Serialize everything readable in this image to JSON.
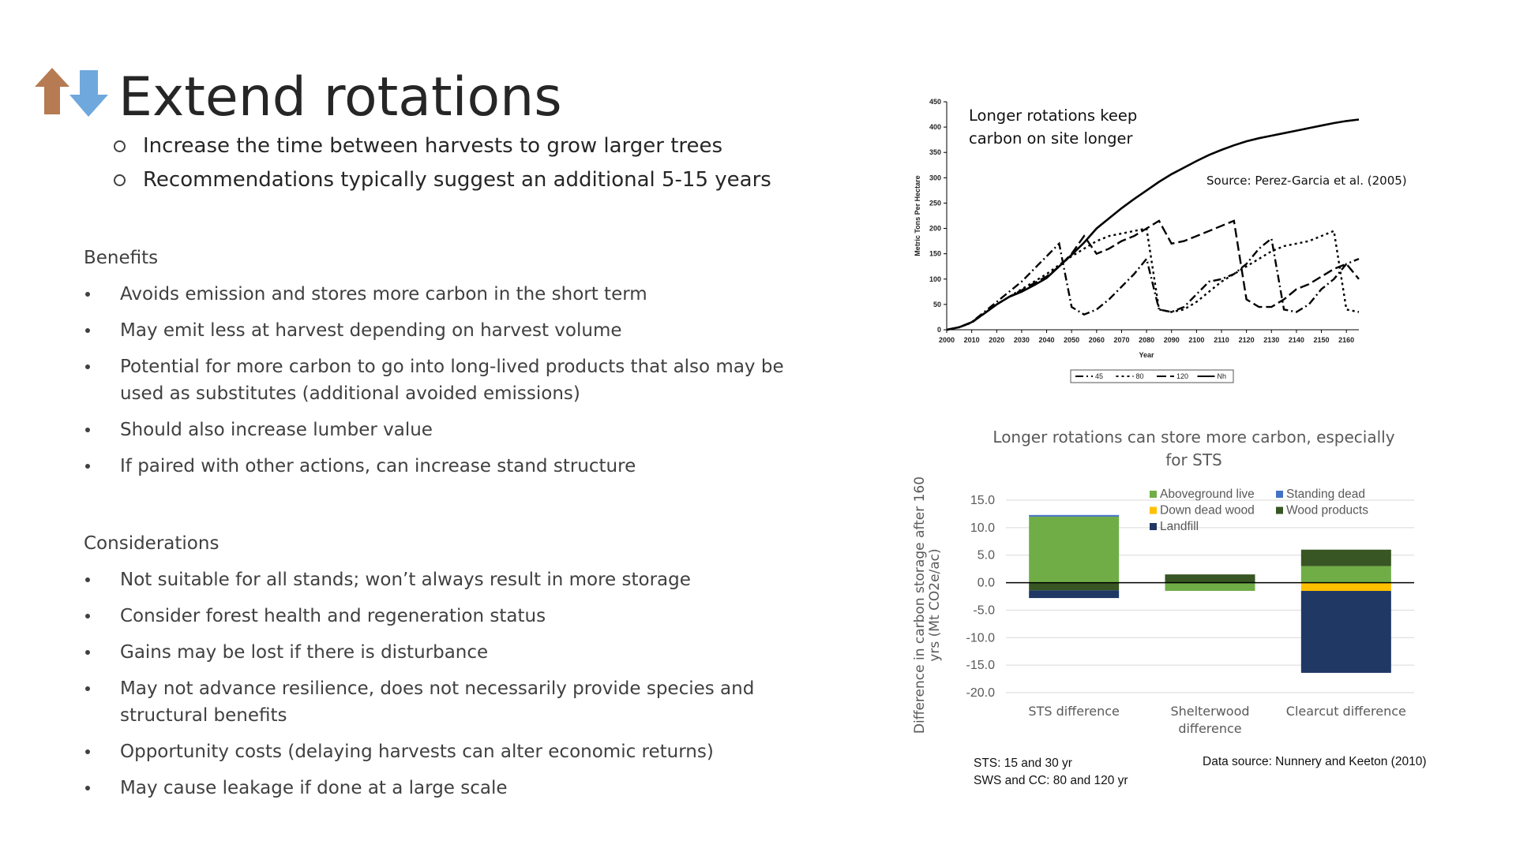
{
  "title": "Extend rotations",
  "sub_bullets": [
    "Increase the time between harvests to grow larger trees",
    "Recommendations typically suggest an additional 5-15 years"
  ],
  "benefits": {
    "heading": "Benefits",
    "items": [
      "Avoids emission and stores more carbon in the short term",
      "May emit less at harvest depending on harvest volume",
      "Potential for more carbon to go into long-lived products that also may be used as substitutes (additional avoided emissions)",
      "Should also increase lumber value",
      "If paired with other actions, can increase stand structure"
    ]
  },
  "considerations": {
    "heading": "Considerations",
    "items": [
      "Not suitable for all stands; won’t always result in more storage",
      "Consider forest health and regeneration status",
      "Gains may be lost if there is disturbance",
      "May not advance resilience, does not necessarily provide species and structural benefits",
      "Opportunity costs (delaying harvests can alter economic returns)",
      "May cause leakage if done at a large scale"
    ]
  },
  "chart_data": [
    {
      "type": "line",
      "annotation": "Longer rotations keep carbon on site longer",
      "source": "Source: Perez-Garcia et al. (2005)",
      "y_label": "Metric Tons Per Hectare",
      "x_label": "Year",
      "x": [
        2000,
        2005,
        2010,
        2015,
        2020,
        2025,
        2030,
        2035,
        2040,
        2045,
        2050,
        2055,
        2060,
        2065,
        2070,
        2075,
        2080,
        2085,
        2090,
        2095,
        2100,
        2105,
        2110,
        2115,
        2120,
        2125,
        2130,
        2135,
        2140,
        2145,
        2150,
        2155,
        2160,
        2165
      ],
      "xlim": [
        2000,
        2165
      ],
      "xticks": [
        2000,
        2010,
        2020,
        2030,
        2040,
        2050,
        2060,
        2070,
        2080,
        2090,
        2100,
        2110,
        2120,
        2130,
        2140,
        2150,
        2160
      ],
      "ylim": [
        0,
        450
      ],
      "yticks": [
        0,
        50,
        100,
        150,
        200,
        250,
        300,
        350,
        400,
        450
      ],
      "series": [
        {
          "name": "45",
          "color": "#000000",
          "style": "dash-dot",
          "values": [
            0,
            5,
            15,
            35,
            55,
            75,
            95,
            120,
            145,
            170,
            45,
            30,
            40,
            60,
            85,
            110,
            140,
            40,
            35,
            45,
            70,
            95,
            100,
            110,
            130,
            160,
            180,
            40,
            35,
            50,
            80,
            100,
            130,
            140
          ]
        },
        {
          "name": "80",
          "color": "#000000",
          "style": "dotted",
          "values": [
            0,
            5,
            14,
            32,
            50,
            65,
            80,
            95,
            110,
            128,
            145,
            160,
            175,
            185,
            190,
            195,
            200,
            40,
            35,
            40,
            55,
            75,
            95,
            110,
            125,
            140,
            155,
            165,
            170,
            175,
            185,
            195,
            40,
            35
          ]
        },
        {
          "name": "120",
          "color": "#000000",
          "style": "dashed",
          "values": [
            0,
            5,
            14,
            32,
            50,
            65,
            78,
            92,
            105,
            125,
            150,
            185,
            150,
            160,
            175,
            185,
            200,
            215,
            170,
            175,
            185,
            195,
            205,
            215,
            60,
            45,
            45,
            60,
            80,
            90,
            105,
            120,
            130,
            100
          ]
        },
        {
          "name": "Nh",
          "color": "#000000",
          "style": "solid",
          "values": [
            0,
            5,
            15,
            32,
            50,
            65,
            75,
            88,
            102,
            125,
            148,
            172,
            200,
            220,
            240,
            258,
            275,
            292,
            307,
            320,
            333,
            345,
            355,
            364,
            372,
            378,
            383,
            388,
            393,
            398,
            403,
            408,
            412,
            415
          ]
        }
      ]
    },
    {
      "type": "stacked_bar",
      "title": "Longer rotations can store more carbon, especially for STS",
      "y_label": "Difference in carbon storage after 160 yrs (Mt CO2e/ac)",
      "categories": [
        "STS difference",
        "Shelterwood difference",
        "Clearcut difference"
      ],
      "ylim": [
        -20,
        15
      ],
      "yticks": [
        {
          "value": 15,
          "label": "15.0"
        },
        {
          "value": 10,
          "label": "10.0"
        },
        {
          "value": 5,
          "label": "5.0"
        },
        {
          "value": 0,
          "label": "0.0"
        },
        {
          "value": -5,
          "label": "-5.0"
        },
        {
          "value": -10,
          "label": "-10.0"
        },
        {
          "value": -15,
          "label": "-15.0"
        },
        {
          "value": -20,
          "label": "-20.0"
        }
      ],
      "grid": true,
      "series": [
        {
          "name": "Aboveground live",
          "color": "#70ad47",
          "values": [
            12,
            -1.5,
            3
          ]
        },
        {
          "name": "Standing dead",
          "color": "#4472c4",
          "values": [
            0.3,
            0,
            0
          ]
        },
        {
          "name": "Down dead wood",
          "color": "#ffc000",
          "values": [
            0,
            0,
            -1.5
          ]
        },
        {
          "name": "Wood products",
          "color": "#375623",
          "values": [
            -1.4,
            1.5,
            3
          ]
        },
        {
          "name": "Landfill",
          "color": "#1f3864",
          "values": [
            -1.4,
            0,
            -14.9
          ]
        }
      ],
      "notes": [
        "STS: 15 and 30 yr",
        "SWS and CC: 80 and 120 yr"
      ],
      "source": "Data  source: Nunnery and Keeton (2010)"
    }
  ]
}
